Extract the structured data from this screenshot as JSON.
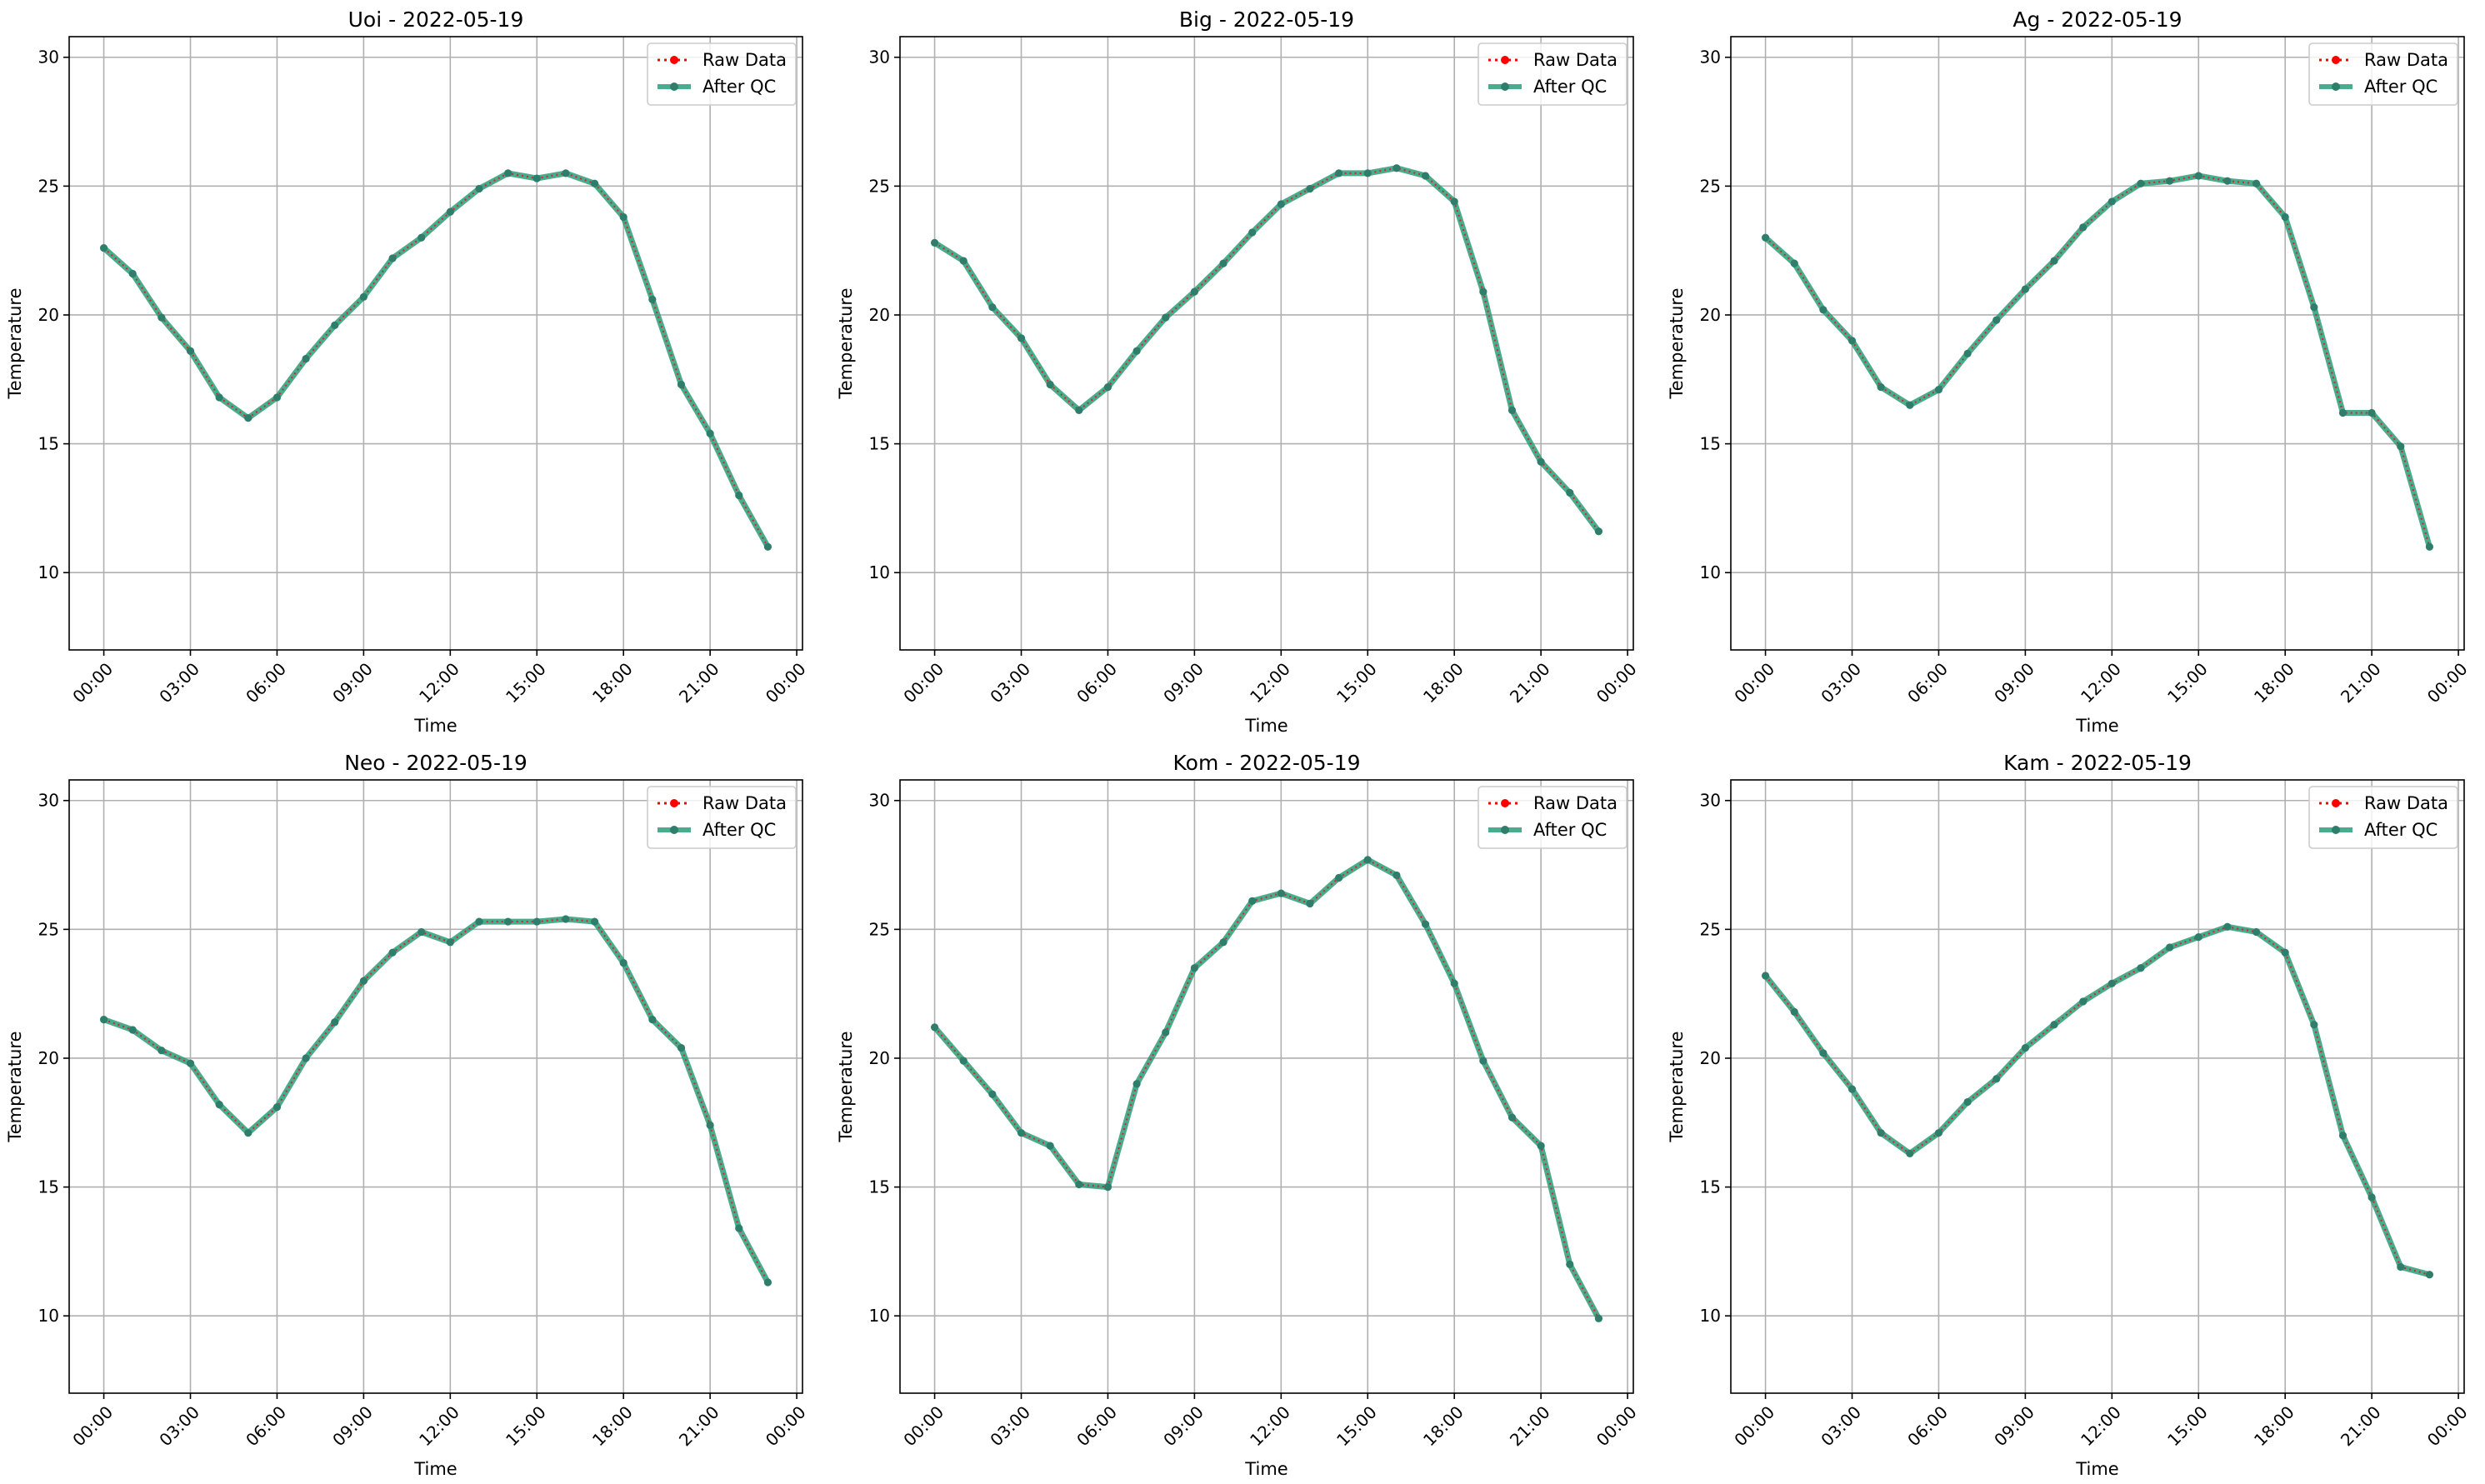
{
  "colors": {
    "raw": "#ff0000",
    "qc": "#2a9d7a",
    "qc_marker": "#2f7d6b"
  },
  "legend": {
    "placement": "upper-right",
    "raw_label": "Raw Data",
    "qc_label": "After QC"
  },
  "chart_data": [
    {
      "type": "line",
      "title": "Uoi - 2022-05-19",
      "xlabel": "Time",
      "ylabel": "Temperature",
      "xlim": [
        "2022-05-18 22:48",
        "2022-05-20 00:12"
      ],
      "ylim": [
        7,
        30.8
      ],
      "grid": true,
      "x_ticks": [
        "00:00",
        "03:00",
        "06:00",
        "09:00",
        "12:00",
        "15:00",
        "18:00",
        "21:00",
        "00:00"
      ],
      "y_ticks": [
        10,
        15,
        20,
        25,
        30
      ],
      "x": [
        "00:00",
        "01:00",
        "02:00",
        "03:00",
        "04:00",
        "05:00",
        "06:00",
        "07:00",
        "08:00",
        "09:00",
        "10:00",
        "11:00",
        "12:00",
        "13:00",
        "14:00",
        "15:00",
        "16:00",
        "17:00",
        "18:00",
        "19:00",
        "20:00",
        "21:00",
        "22:00",
        "23:00"
      ],
      "series": [
        {
          "name": "Raw Data",
          "values": [
            22.6,
            21.6,
            19.9,
            18.6,
            16.8,
            16.0,
            16.8,
            18.3,
            19.6,
            20.7,
            22.2,
            23.0,
            24.0,
            24.9,
            25.5,
            25.3,
            25.5,
            25.1,
            23.8,
            20.6,
            17.3,
            15.4,
            13.0,
            11.0
          ]
        },
        {
          "name": "After QC",
          "values": [
            22.6,
            21.6,
            19.9,
            18.6,
            16.8,
            16.0,
            16.8,
            18.3,
            19.6,
            20.7,
            22.2,
            23.0,
            24.0,
            24.9,
            25.5,
            25.3,
            25.5,
            25.1,
            23.8,
            20.6,
            17.3,
            15.4,
            13.0,
            11.0
          ]
        }
      ]
    },
    {
      "type": "line",
      "title": "Big - 2022-05-19",
      "xlabel": "Time",
      "ylabel": "Temperature",
      "xlim": [
        "2022-05-18 22:48",
        "2022-05-20 00:12"
      ],
      "ylim": [
        7,
        30.8
      ],
      "grid": true,
      "x_ticks": [
        "00:00",
        "03:00",
        "06:00",
        "09:00",
        "12:00",
        "15:00",
        "18:00",
        "21:00",
        "00:00"
      ],
      "y_ticks": [
        10,
        15,
        20,
        25,
        30
      ],
      "x": [
        "00:00",
        "01:00",
        "02:00",
        "03:00",
        "04:00",
        "05:00",
        "06:00",
        "07:00",
        "08:00",
        "09:00",
        "10:00",
        "11:00",
        "12:00",
        "13:00",
        "14:00",
        "15:00",
        "16:00",
        "17:00",
        "18:00",
        "19:00",
        "20:00",
        "21:00",
        "22:00",
        "23:00"
      ],
      "series": [
        {
          "name": "Raw Data",
          "values": [
            22.8,
            22.1,
            20.3,
            19.1,
            17.3,
            16.3,
            17.2,
            18.6,
            19.9,
            20.9,
            22.0,
            23.2,
            24.3,
            24.9,
            25.5,
            25.5,
            25.7,
            25.4,
            24.4,
            20.9,
            16.3,
            14.3,
            13.1,
            11.6
          ]
        },
        {
          "name": "After QC",
          "values": [
            22.8,
            22.1,
            20.3,
            19.1,
            17.3,
            16.3,
            17.2,
            18.6,
            19.9,
            20.9,
            22.0,
            23.2,
            24.3,
            24.9,
            25.5,
            25.5,
            25.7,
            25.4,
            24.4,
            20.9,
            16.3,
            14.3,
            13.1,
            11.6
          ]
        }
      ]
    },
    {
      "type": "line",
      "title": "Ag - 2022-05-19",
      "xlabel": "Time",
      "ylabel": "Temperature",
      "xlim": [
        "2022-05-18 22:48",
        "2022-05-20 00:12"
      ],
      "ylim": [
        7,
        30.8
      ],
      "grid": true,
      "x_ticks": [
        "00:00",
        "03:00",
        "06:00",
        "09:00",
        "12:00",
        "15:00",
        "18:00",
        "21:00",
        "00:00"
      ],
      "y_ticks": [
        10,
        15,
        20,
        25,
        30
      ],
      "x": [
        "00:00",
        "01:00",
        "02:00",
        "03:00",
        "04:00",
        "05:00",
        "06:00",
        "07:00",
        "08:00",
        "09:00",
        "10:00",
        "11:00",
        "12:00",
        "13:00",
        "14:00",
        "15:00",
        "16:00",
        "17:00",
        "18:00",
        "19:00",
        "20:00",
        "21:00",
        "22:00",
        "23:00"
      ],
      "series": [
        {
          "name": "Raw Data",
          "values": [
            23.0,
            22.0,
            20.2,
            19.0,
            17.2,
            16.5,
            17.1,
            18.5,
            19.8,
            21.0,
            22.1,
            23.4,
            24.4,
            25.1,
            25.2,
            25.4,
            25.2,
            25.1,
            23.8,
            20.3,
            16.2,
            16.2,
            14.9,
            11.0
          ]
        },
        {
          "name": "After QC",
          "values": [
            23.0,
            22.0,
            20.2,
            19.0,
            17.2,
            16.5,
            17.1,
            18.5,
            19.8,
            21.0,
            22.1,
            23.4,
            24.4,
            25.1,
            25.2,
            25.4,
            25.2,
            25.1,
            23.8,
            20.3,
            16.2,
            16.2,
            14.9,
            11.0
          ]
        }
      ]
    },
    {
      "type": "line",
      "title": "Neo - 2022-05-19",
      "xlabel": "Time",
      "ylabel": "Temperature",
      "xlim": [
        "2022-05-18 22:48",
        "2022-05-20 00:12"
      ],
      "ylim": [
        7,
        30.8
      ],
      "grid": true,
      "x_ticks": [
        "00:00",
        "03:00",
        "06:00",
        "09:00",
        "12:00",
        "15:00",
        "18:00",
        "21:00",
        "00:00"
      ],
      "y_ticks": [
        10,
        15,
        20,
        25,
        30
      ],
      "x": [
        "00:00",
        "01:00",
        "02:00",
        "03:00",
        "04:00",
        "05:00",
        "06:00",
        "07:00",
        "08:00",
        "09:00",
        "10:00",
        "11:00",
        "12:00",
        "13:00",
        "14:00",
        "15:00",
        "16:00",
        "17:00",
        "18:00",
        "19:00",
        "20:00",
        "21:00",
        "22:00",
        "23:00"
      ],
      "series": [
        {
          "name": "Raw Data",
          "values": [
            21.5,
            21.1,
            20.3,
            19.8,
            18.2,
            17.1,
            18.1,
            20.0,
            21.4,
            23.0,
            24.1,
            24.9,
            24.5,
            25.3,
            25.3,
            25.3,
            25.4,
            25.3,
            23.7,
            21.5,
            20.4,
            17.4,
            13.4,
            11.3
          ]
        },
        {
          "name": "After QC",
          "values": [
            21.5,
            21.1,
            20.3,
            19.8,
            18.2,
            17.1,
            18.1,
            20.0,
            21.4,
            23.0,
            24.1,
            24.9,
            24.5,
            25.3,
            25.3,
            25.3,
            25.4,
            25.3,
            23.7,
            21.5,
            20.4,
            17.4,
            13.4,
            11.3
          ]
        }
      ]
    },
    {
      "type": "line",
      "title": "Kom - 2022-05-19",
      "xlabel": "Time",
      "ylabel": "Temperature",
      "xlim": [
        "2022-05-18 22:48",
        "2022-05-20 00:12"
      ],
      "ylim": [
        7,
        30.8
      ],
      "grid": true,
      "x_ticks": [
        "00:00",
        "03:00",
        "06:00",
        "09:00",
        "12:00",
        "15:00",
        "18:00",
        "21:00",
        "00:00"
      ],
      "y_ticks": [
        10,
        15,
        20,
        25,
        30
      ],
      "x": [
        "00:00",
        "01:00",
        "02:00",
        "03:00",
        "04:00",
        "05:00",
        "06:00",
        "07:00",
        "08:00",
        "09:00",
        "10:00",
        "11:00",
        "12:00",
        "13:00",
        "14:00",
        "15:00",
        "16:00",
        "17:00",
        "18:00",
        "19:00",
        "20:00",
        "21:00",
        "22:00",
        "23:00"
      ],
      "series": [
        {
          "name": "Raw Data",
          "values": [
            21.2,
            19.9,
            18.6,
            17.1,
            16.6,
            15.1,
            15.0,
            19.0,
            21.0,
            23.5,
            24.5,
            26.1,
            26.4,
            26.0,
            27.0,
            27.7,
            27.1,
            25.2,
            22.9,
            19.9,
            17.7,
            16.6,
            12.0,
            9.9
          ]
        },
        {
          "name": "After QC",
          "values": [
            21.2,
            19.9,
            18.6,
            17.1,
            16.6,
            15.1,
            15.0,
            19.0,
            21.0,
            23.5,
            24.5,
            26.1,
            26.4,
            26.0,
            27.0,
            27.7,
            27.1,
            25.2,
            22.9,
            19.9,
            17.7,
            16.6,
            12.0,
            9.9
          ]
        }
      ]
    },
    {
      "type": "line",
      "title": "Kam - 2022-05-19",
      "xlabel": "Time",
      "ylabel": "Temperature",
      "xlim": [
        "2022-05-18 22:48",
        "2022-05-20 00:12"
      ],
      "ylim": [
        7,
        30.8
      ],
      "grid": true,
      "x_ticks": [
        "00:00",
        "03:00",
        "06:00",
        "09:00",
        "12:00",
        "15:00",
        "18:00",
        "21:00",
        "00:00"
      ],
      "y_ticks": [
        10,
        15,
        20,
        25,
        30
      ],
      "x": [
        "00:00",
        "01:00",
        "02:00",
        "03:00",
        "04:00",
        "05:00",
        "06:00",
        "07:00",
        "08:00",
        "09:00",
        "10:00",
        "11:00",
        "12:00",
        "13:00",
        "14:00",
        "15:00",
        "16:00",
        "17:00",
        "18:00",
        "19:00",
        "20:00",
        "21:00",
        "22:00",
        "23:00"
      ],
      "series": [
        {
          "name": "Raw Data",
          "values": [
            23.2,
            21.8,
            20.2,
            18.8,
            17.1,
            16.3,
            17.1,
            18.3,
            19.2,
            20.4,
            21.3,
            22.2,
            22.9,
            23.5,
            24.3,
            24.7,
            25.1,
            24.9,
            24.1,
            21.3,
            17.0,
            14.6,
            11.9,
            11.6
          ]
        },
        {
          "name": "After QC",
          "values": [
            23.2,
            21.8,
            20.2,
            18.8,
            17.1,
            16.3,
            17.1,
            18.3,
            19.2,
            20.4,
            21.3,
            22.2,
            22.9,
            23.5,
            24.3,
            24.7,
            25.1,
            24.9,
            24.1,
            21.3,
            17.0,
            14.6,
            11.9,
            11.6
          ]
        }
      ]
    }
  ]
}
